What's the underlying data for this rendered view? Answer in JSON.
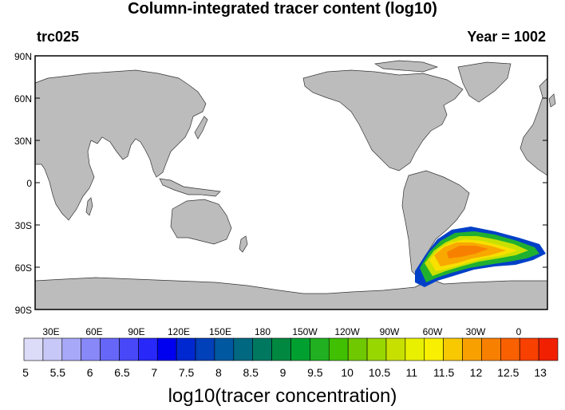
{
  "header": {
    "title": "Column-integrated tracer content (log10)",
    "left_label": "trc025",
    "right_label": "Year = 1002"
  },
  "map": {
    "lat_labels": [
      "90N",
      "60N",
      "30N",
      "0",
      "30S",
      "60S",
      "90S"
    ],
    "lon_labels": [
      "30E",
      "60E",
      "90E",
      "120E",
      "150E",
      "180",
      "150W",
      "120W",
      "90W",
      "60W",
      "30W",
      "0"
    ],
    "land_color": "#bcbcbc",
    "ocean_color": "#ffffff"
  },
  "colorbar": {
    "title": "log10(tracer concentration)",
    "tick_labels": [
      "5",
      "5.5",
      "6",
      "6.5",
      "7",
      "7.5",
      "8",
      "8.5",
      "9",
      "9.5",
      "10",
      "10.5",
      "11",
      "11.5",
      "12",
      "12.5",
      "13"
    ],
    "colors": [
      "#dcdcf8",
      "#c8c8f8",
      "#a8a8f8",
      "#8888f8",
      "#6666f8",
      "#4848f8",
      "#2828f8",
      "#0000f0",
      "#0028d0",
      "#0040b8",
      "#0058a0",
      "#006880",
      "#007860",
      "#008840",
      "#00a030",
      "#20b020",
      "#40c000",
      "#70c800",
      "#98d800",
      "#c8e000",
      "#e8f000",
      "#f8f000",
      "#f8c800",
      "#f8a000",
      "#f88000",
      "#f86000",
      "#f84000",
      "#f02000"
    ]
  }
}
